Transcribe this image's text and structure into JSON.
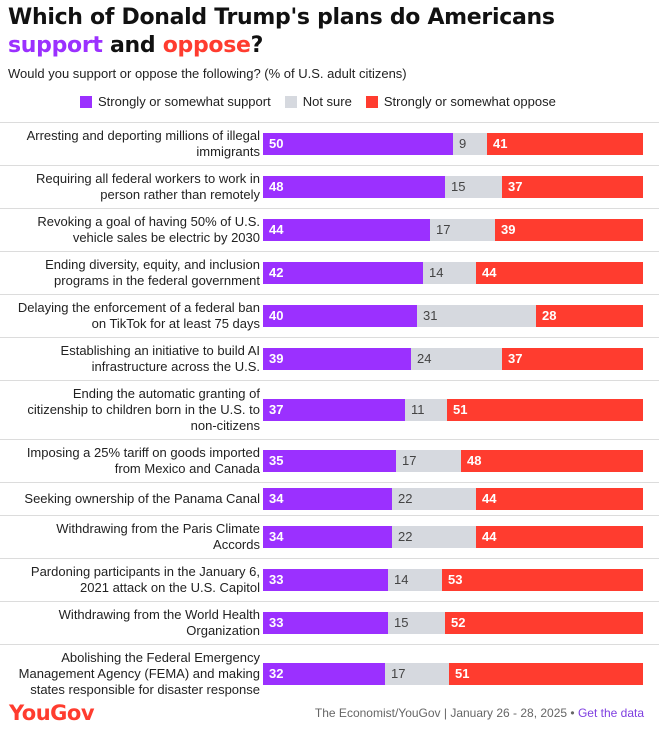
{
  "title": {
    "part1": "Which of Donald Trump's plans do Americans ",
    "highlight1": "support",
    "part2": " and ",
    "highlight2": "oppose",
    "part3": "?"
  },
  "subtitle": "Would you support or oppose the following? (% of U.S. adult citizens)",
  "colors": {
    "support": "#9b30ff",
    "unsure": "#d6d9df",
    "oppose": "#ff3c2f"
  },
  "chart_data": {
    "type": "bar",
    "stacked": true,
    "orientation": "horizontal",
    "categories": [
      "Arresting and deporting millions of illegal immigrants",
      "Requiring all federal workers to work in person rather than remotely",
      "Revoking a goal of having 50% of U.S. vehicle sales be electric by 2030",
      "Ending diversity, equity, and inclusion programs in the federal government",
      "Delaying the enforcement of a federal ban on TikTok for at least 75 days",
      "Establishing an initiative to build AI infrastructure across the U.S.",
      "Ending the automatic granting of citizenship to children born in the U.S. to non-citizens",
      "Imposing a 25% tariff on goods imported from Mexico and Canada",
      "Seeking ownership of the Panama Canal",
      "Withdrawing from the Paris Climate Accords",
      "Pardoning participants in the January 6, 2021 attack on the U.S. Capitol",
      "Withdrawing from the World Health Organization",
      "Abolishing the Federal Emergency Management Agency (FEMA) and making states responsible for disaster response"
    ],
    "series": [
      {
        "name": "Strongly or somewhat support",
        "values": [
          50,
          48,
          44,
          42,
          40,
          39,
          37,
          35,
          34,
          34,
          33,
          33,
          32
        ]
      },
      {
        "name": "Not sure",
        "values": [
          9,
          15,
          17,
          14,
          31,
          24,
          11,
          17,
          22,
          22,
          14,
          15,
          17
        ]
      },
      {
        "name": "Strongly or somewhat oppose",
        "values": [
          41,
          37,
          39,
          44,
          28,
          37,
          51,
          48,
          44,
          44,
          53,
          52,
          51
        ]
      }
    ],
    "xlim": [
      0,
      100
    ],
    "legend": "top"
  },
  "footer": {
    "logo": "YouGov",
    "source": "The Economist/YouGov | January 26 - 28, 2025 • ",
    "link": "Get the data"
  }
}
